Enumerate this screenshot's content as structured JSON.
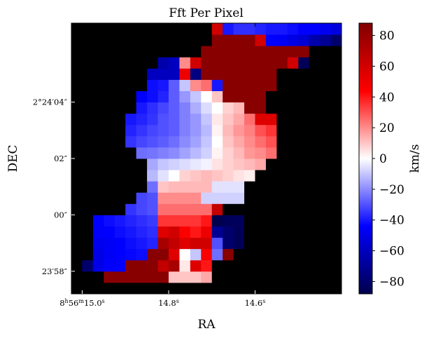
{
  "chart_data": {
    "type": "heatmap",
    "title": "Fft Per Pixel",
    "xlabel": "RA",
    "ylabel": "DEC",
    "x_ticks": [
      {
        "label": "8h56m15.0s",
        "parts": [
          "8",
          "h",
          "56",
          "m",
          "15.0",
          "s"
        ],
        "col": 1.0
      },
      {
        "label": "14.8s",
        "parts": [
          "14.8",
          "s"
        ],
        "col": 9.0
      },
      {
        "label": "14.6s",
        "parts": [
          "14.6",
          "s"
        ],
        "col": 17.0
      }
    ],
    "y_ticks": [
      {
        "label": "2°24′04″",
        "parts": [
          "2°24′04″"
        ],
        "row": 16.5
      },
      {
        "label": "02″",
        "parts": [
          "02″"
        ],
        "row": 11.5
      },
      {
        "label": "00″",
        "parts": [
          "00″"
        ],
        "row": 6.5
      },
      {
        "label": "23′58″",
        "parts": [
          "23′58″"
        ],
        "row": 1.5
      }
    ],
    "colorbar": {
      "label": "km/s",
      "min": -88,
      "max": 88,
      "ticks": [
        -80,
        -60,
        -40,
        -20,
        0,
        20,
        40,
        60,
        80
      ],
      "colormap": "seismic"
    },
    "grid": {
      "nx": 25,
      "ny": 24,
      "origin": "bottom-left",
      "null_color": "#000000",
      "rows": [
        [
          "n",
          "n",
          "n",
          "n",
          "n",
          "n",
          "n",
          "n",
          "n",
          "n",
          "n",
          "n",
          "n",
          "n",
          "n",
          "n",
          "n",
          "n",
          "n",
          "n",
          "n",
          "n",
          "n",
          "n",
          "n"
        ],
        [
          "n",
          "n",
          "n",
          85,
          85,
          85,
          85,
          85,
          85,
          10,
          10,
          10,
          15,
          "n",
          "n",
          "n",
          "n",
          "n",
          "n",
          "n",
          "n",
          "n",
          "n",
          "n",
          "n"
        ],
        [
          "n",
          -80,
          -50,
          -45,
          -45,
          85,
          85,
          85,
          65,
          75,
          4,
          55,
          40,
          "n",
          "n",
          "n",
          "n",
          "n",
          "n",
          "n",
          "n",
          "n",
          "n",
          "n",
          "n"
        ],
        [
          "n",
          "n",
          -50,
          -46,
          -44,
          -43,
          -42,
          85,
          85,
          55,
          0,
          -10,
          45,
          -25,
          85,
          "n",
          "n",
          "n",
          "n",
          "n",
          "n",
          "n",
          "n",
          "n",
          "n"
        ],
        [
          "n",
          "n",
          -48,
          -46,
          -44,
          -42,
          -40,
          -38,
          75,
          65,
          55,
          60,
          60,
          -30,
          -80,
          -85,
          "n",
          "n",
          "n",
          "n",
          "n",
          "n",
          "n",
          "n",
          "n"
        ],
        [
          "n",
          "n",
          -45,
          -44,
          -42,
          -40,
          -38,
          -36,
          55,
          60,
          45,
          40,
          50,
          -70,
          -80,
          -85,
          "n",
          "n",
          "n",
          "n",
          "n",
          "n",
          "n",
          "n",
          "n"
        ],
        [
          "n",
          "n",
          -44,
          -42,
          -40,
          -38,
          -36,
          -34,
          35,
          35,
          35,
          35,
          40,
          -88,
          -85,
          -84,
          "n",
          "n",
          "n",
          "n",
          "n",
          "n",
          "n",
          "n",
          "n"
        ],
        [
          "n",
          "n",
          "n",
          "n",
          "n",
          -35,
          -32,
          -30,
          25,
          25,
          25,
          25,
          25,
          65,
          "n",
          "n",
          "n",
          "n",
          "n",
          "n",
          "n",
          "n",
          "n",
          "n",
          "n"
        ],
        [
          "n",
          "n",
          "n",
          "n",
          "n",
          "n",
          -32,
          -30,
          20,
          20,
          20,
          20,
          -8,
          -8,
          -8,
          -8,
          "n",
          "n",
          "n",
          "n",
          "n",
          "n",
          "n",
          "n",
          "n"
        ],
        [
          "n",
          "n",
          "n",
          "n",
          "n",
          "n",
          "n",
          -25,
          10,
          12,
          12,
          12,
          12,
          -5,
          -5,
          -5,
          "n",
          "n",
          "n",
          "n",
          "n",
          "n",
          "n",
          "n",
          "n"
        ],
        [
          "n",
          "n",
          "n",
          "n",
          "n",
          "n",
          "n",
          -12,
          -5,
          0,
          8,
          10,
          12,
          10,
          8,
          5,
          3,
          "n",
          "n",
          "n",
          "n",
          "n",
          "n",
          "n",
          "n"
        ],
        [
          "n",
          "n",
          "n",
          "n",
          "n",
          "n",
          "n",
          -15,
          -10,
          -8,
          -6,
          -4,
          -2,
          5,
          8,
          10,
          12,
          15,
          "n",
          "n",
          "n",
          "n",
          "n",
          "n",
          "n"
        ],
        [
          "n",
          "n",
          "n",
          "n",
          "n",
          "n",
          -25,
          -24,
          -22,
          -20,
          -16,
          -12,
          -8,
          2,
          8,
          12,
          18,
          20,
          25,
          "n",
          "n",
          "n",
          "n",
          "n",
          "n"
        ],
        [
          "n",
          "n",
          "n",
          "n",
          "n",
          -35,
          -32,
          -30,
          -28,
          -25,
          -20,
          -16,
          -10,
          0,
          10,
          15,
          20,
          25,
          30,
          "n",
          "n",
          "n",
          "n",
          "n",
          "n"
        ],
        [
          "n",
          "n",
          "n",
          "n",
          "n",
          -38,
          -35,
          -32,
          -30,
          -28,
          -22,
          -18,
          -12,
          2,
          12,
          18,
          22,
          30,
          35,
          "n",
          "n",
          "n",
          "n",
          "n",
          "n"
        ],
        [
          "n",
          "n",
          "n",
          "n",
          "n",
          -40,
          -38,
          -35,
          -30,
          -28,
          -22,
          -18,
          -10,
          4,
          10,
          15,
          25,
          55,
          55,
          "n",
          "n",
          "n",
          "n",
          "n",
          "n"
        ],
        [
          "n",
          "n",
          "n",
          "n",
          "n",
          "n",
          -40,
          -36,
          -32,
          -28,
          -22,
          -14,
          -6,
          0,
          8,
          12,
          85,
          85,
          "n",
          "n",
          "n",
          "n",
          "n",
          "n",
          "n"
        ],
        [
          "n",
          "n",
          "n",
          "n",
          "n",
          "n",
          -45,
          -42,
          -38,
          -28,
          -18,
          -10,
          0,
          10,
          85,
          85,
          85,
          85,
          "n",
          "n",
          "n",
          "n",
          "n",
          "n",
          "n"
        ],
        [
          "n",
          "n",
          "n",
          "n",
          "n",
          "n",
          "n",
          -42,
          -40,
          -28,
          -10,
          20,
          25,
          -40,
          85,
          85,
          85,
          85,
          85,
          "n",
          "n",
          "n",
          "n",
          "n",
          "n"
        ],
        [
          "n",
          "n",
          "n",
          "n",
          "n",
          "n",
          "n",
          -60,
          -60,
          -60,
          50,
          -75,
          85,
          85,
          85,
          85,
          85,
          85,
          85,
          "n",
          "n",
          "n",
          "n",
          "n",
          "n"
        ],
        [
          "n",
          "n",
          "n",
          "n",
          "n",
          "n",
          "n",
          "n",
          -65,
          -60,
          20,
          60,
          85,
          85,
          85,
          85,
          85,
          85,
          85,
          85,
          60,
          -85,
          "n",
          "n",
          "n"
        ],
        [
          "n",
          "n",
          "n",
          "n",
          "n",
          "n",
          "n",
          "n",
          "n",
          "n",
          "n",
          "n",
          85,
          85,
          85,
          85,
          85,
          85,
          85,
          85,
          85,
          85,
          "n",
          "n",
          "n"
        ],
        [
          "n",
          "n",
          "n",
          "n",
          "n",
          "n",
          "n",
          "n",
          "n",
          "n",
          "n",
          "n",
          "n",
          85,
          85,
          85,
          85,
          60,
          -44,
          -46,
          -50,
          -55,
          -65,
          -70,
          -80
        ],
        [
          "n",
          "n",
          "n",
          "n",
          "n",
          "n",
          "n",
          "n",
          "n",
          "n",
          "n",
          "n",
          "n",
          60,
          -40,
          -36,
          -36,
          -38,
          -40,
          -40,
          -42,
          -44,
          -44,
          -48,
          -52
        ]
      ]
    }
  }
}
